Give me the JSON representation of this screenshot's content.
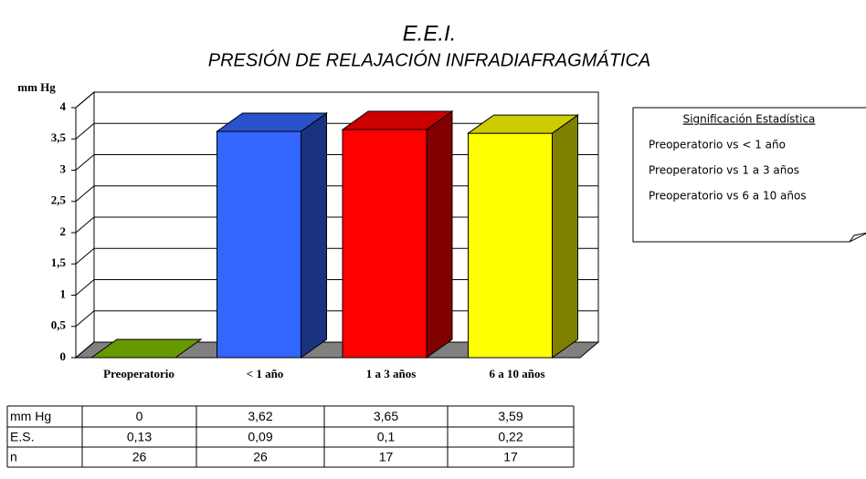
{
  "chart_data": {
    "type": "bar3d",
    "title": "E.E.I.",
    "subtitle": "PRESIÓN DE RELAJACIÓN INFRADIAFRAGMÁTICA",
    "y_label": "mm Hg",
    "categories": [
      "Preoperatorio",
      "< 1 año",
      "1 a 3 años",
      "6 a 10 años"
    ],
    "values": [
      0,
      3.62,
      3.65,
      3.59
    ],
    "value_labels": [
      "0",
      "3,62",
      "3,65",
      "3,59"
    ],
    "colors": [
      "#669900",
      "#3366ff",
      "#ff0000",
      "#ffff00"
    ],
    "ylim": [
      0,
      4
    ],
    "yticks": [
      0,
      {
        "value": 0.5,
        "label": "0,5"
      },
      1,
      {
        "value": 1.5,
        "label": "1,5"
      },
      2,
      {
        "value": 2.5,
        "label": "2,5"
      },
      3,
      {
        "value": 3.5,
        "label": "3,5"
      },
      4
    ],
    "grid": true
  },
  "note": {
    "title": "Significación Estadística",
    "lines": [
      "Preoperatorio vs  < 1 año",
      "Preoperatorio vs  1 a 3 años",
      "Preoperatorio vs  6 a 10 años"
    ]
  },
  "table": {
    "rows": [
      {
        "label": "E.S.",
        "cells": [
          "0,13",
          "0,09",
          "0,1",
          "0,22"
        ]
      },
      {
        "label": "n",
        "cells": [
          26,
          26,
          17,
          17
        ]
      }
    ]
  }
}
